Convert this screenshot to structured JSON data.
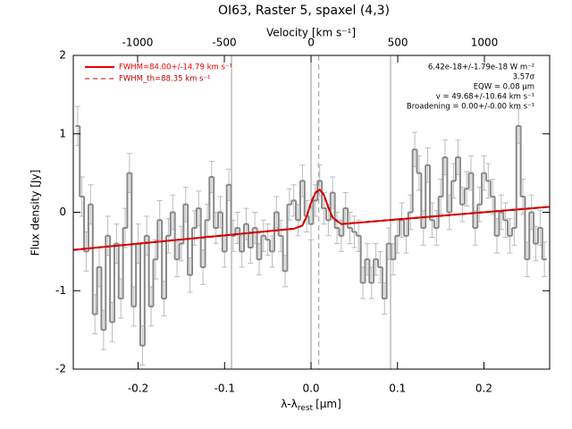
{
  "chart_data": {
    "type": "step",
    "title": "OI63, Raster 5, spaxel (4,3)",
    "top_axis_label": "Velocity [km s⁻¹]",
    "ylabel": "Flux density [Jy]",
    "xlabel": {
      "main": "λ-λ",
      "sub": "rest",
      "unit": "[μm]"
    },
    "xlim": [
      -0.275,
      0.276
    ],
    "xticks": [
      -0.2,
      -0.1,
      {
        "value": 0,
        "label": "0.0"
      },
      0.1,
      0.2
    ],
    "vlim": [
      -1371,
      1376
    ],
    "vticks": [
      -1000,
      -500,
      0,
      500,
      1000
    ],
    "ylim": [
      -2,
      2
    ],
    "yticks": [
      -2,
      -1,
      0,
      1,
      2
    ],
    "color": "#888888",
    "error_color": "#bbbbbb",
    "x": [
      -0.27,
      -0.265,
      -0.26,
      -0.255,
      -0.25,
      -0.245,
      -0.24,
      -0.235,
      -0.23,
      -0.225,
      -0.22,
      -0.215,
      -0.21,
      -0.205,
      -0.2,
      -0.195,
      -0.19,
      -0.185,
      -0.18,
      -0.175,
      -0.17,
      -0.165,
      -0.16,
      -0.155,
      -0.15,
      -0.145,
      -0.14,
      -0.135,
      -0.13,
      -0.125,
      -0.12,
      -0.115,
      -0.11,
      -0.105,
      -0.1,
      -0.095,
      -0.09,
      -0.085,
      -0.08,
      -0.075,
      -0.07,
      -0.065,
      -0.06,
      -0.055,
      -0.05,
      -0.045,
      -0.04,
      -0.035,
      -0.03,
      -0.025,
      -0.02,
      -0.015,
      -0.01,
      -0.005,
      0,
      0.005,
      0.01,
      0.015,
      0.02,
      0.025,
      0.03,
      0.035,
      0.04,
      0.045,
      0.05,
      0.055,
      0.06,
      0.065,
      0.07,
      0.075,
      0.08,
      0.085,
      0.09,
      0.095,
      0.1,
      0.105,
      0.11,
      0.115,
      0.12,
      0.125,
      0.13,
      0.135,
      0.14,
      0.145,
      0.15,
      0.155,
      0.16,
      0.165,
      0.17,
      0.175,
      0.18,
      0.185,
      0.19,
      0.195,
      0.2,
      0.205,
      0.21,
      0.215,
      0.22,
      0.225,
      0.23,
      0.235,
      0.24,
      0.245,
      0.25,
      0.255,
      0.26,
      0.265,
      0.27
    ],
    "values": [
      1.1,
      0.2,
      -0.5,
      0.1,
      -1.3,
      -0.7,
      -1.5,
      -0.3,
      -1.4,
      -0.4,
      -1.1,
      -0.2,
      0.5,
      -1.2,
      -0.4,
      -1.7,
      -0.3,
      -1.2,
      -0.6,
      -0.1,
      -1.1,
      -0.3,
      0.0,
      -0.6,
      -0.4,
      0.1,
      -0.8,
      -0.2,
      0.05,
      -0.7,
      -0.1,
      0.45,
      -0.2,
      0.0,
      -0.5,
      0.35,
      -0.3,
      -0.2,
      -0.5,
      -0.15,
      -0.45,
      -0.2,
      -0.6,
      -0.3,
      -0.35,
      -0.5,
      0.0,
      -0.3,
      -0.75,
      0.1,
      0.15,
      -0.1,
      0.4,
      -0.05,
      -0.15,
      0.15,
      0.4,
      0.05,
      -0.1,
      0.25,
      -0.2,
      -0.3,
      0.05,
      -0.2,
      -0.25,
      -0.3,
      -0.9,
      -0.6,
      -0.9,
      -0.6,
      -0.7,
      -1.1,
      -0.4,
      -0.6,
      -0.3,
      -0.1,
      -0.3,
      0.0,
      0.8,
      0.5,
      -0.2,
      0.6,
      -0.1,
      -0.2,
      0.2,
      0.7,
      0.0,
      0.4,
      0.7,
      0.1,
      0.3,
      0.5,
      -0.2,
      0.1,
      0.5,
      0.4,
      0.2,
      -0.3,
      0.0,
      -0.1,
      -0.3,
      -0.2,
      1.1,
      0.2,
      -0.6,
      0.0,
      -0.4,
      -0.2,
      -0.6
    ],
    "errors": [
      0.25,
      0.25,
      0.25,
      0.25,
      0.25,
      0.25,
      0.25,
      0.25,
      0.25,
      0.25,
      0.25,
      0.25,
      0.25,
      0.25,
      0.25,
      0.25,
      0.25,
      0.25,
      0.25,
      0.25,
      0.22,
      0.22,
      0.22,
      0.22,
      0.22,
      0.22,
      0.22,
      0.22,
      0.22,
      0.22,
      0.2,
      0.2,
      0.2,
      0.2,
      0.2,
      0.2,
      0.2,
      0.2,
      0.2,
      0.2,
      0.2,
      0.2,
      0.2,
      0.2,
      0.2,
      0.2,
      0.2,
      0.2,
      0.2,
      0.2,
      0.2,
      0.2,
      0.2,
      0.2,
      0.2,
      0.2,
      0.2,
      0.2,
      0.2,
      0.2,
      0.2,
      0.2,
      0.2,
      0.2,
      0.2,
      0.2,
      0.2,
      0.2,
      0.2,
      0.2,
      0.2,
      0.2,
      0.2,
      0.2,
      0.22,
      0.22,
      0.22,
      0.22,
      0.22,
      0.22,
      0.22,
      0.22,
      0.22,
      0.22,
      0.22,
      0.22,
      0.22,
      0.22,
      0.22,
      0.22,
      0.22,
      0.22,
      0.22,
      0.22,
      0.22,
      0.22,
      0.22,
      0.22,
      0.22,
      0.22,
      0.22,
      0.22,
      0.22,
      0.22,
      0.22,
      0.22,
      0.22,
      0.22,
      0.22
    ],
    "fit": {
      "x": [
        -0.275,
        -0.02,
        -0.01,
        -0.005,
        0,
        0.005,
        0.01,
        0.015,
        0.02,
        0.025,
        0.035,
        0.276
      ],
      "y": [
        -0.48,
        -0.21,
        -0.17,
        -0.05,
        0.12,
        0.25,
        0.29,
        0.22,
        0.06,
        -0.07,
        -0.15,
        0.07
      ]
    },
    "fit_legend": [
      {
        "name": "FWHM=84.00+/-14.79 km s⁻¹",
        "color": "#ee0000",
        "dashed": false
      },
      {
        "name": "FWHM_th=88.35 km s⁻¹",
        "color": "#c00000",
        "dashed": true
      }
    ],
    "vlines": [
      {
        "value": -0.092,
        "dashed": false
      },
      {
        "value": 0,
        "dashed": false
      },
      {
        "value": 0.092,
        "dashed": false
      },
      {
        "value": 0.009,
        "dashed": true
      }
    ],
    "annotations": [
      "6.42e-18+/-1.79e-18 W m⁻²",
      "3.57σ",
      "EQW = 0.08 μm",
      "v = 49.68+/-10.64 km s⁻¹",
      "Broadening = 0.00+/-0.00 km s⁻¹"
    ]
  }
}
